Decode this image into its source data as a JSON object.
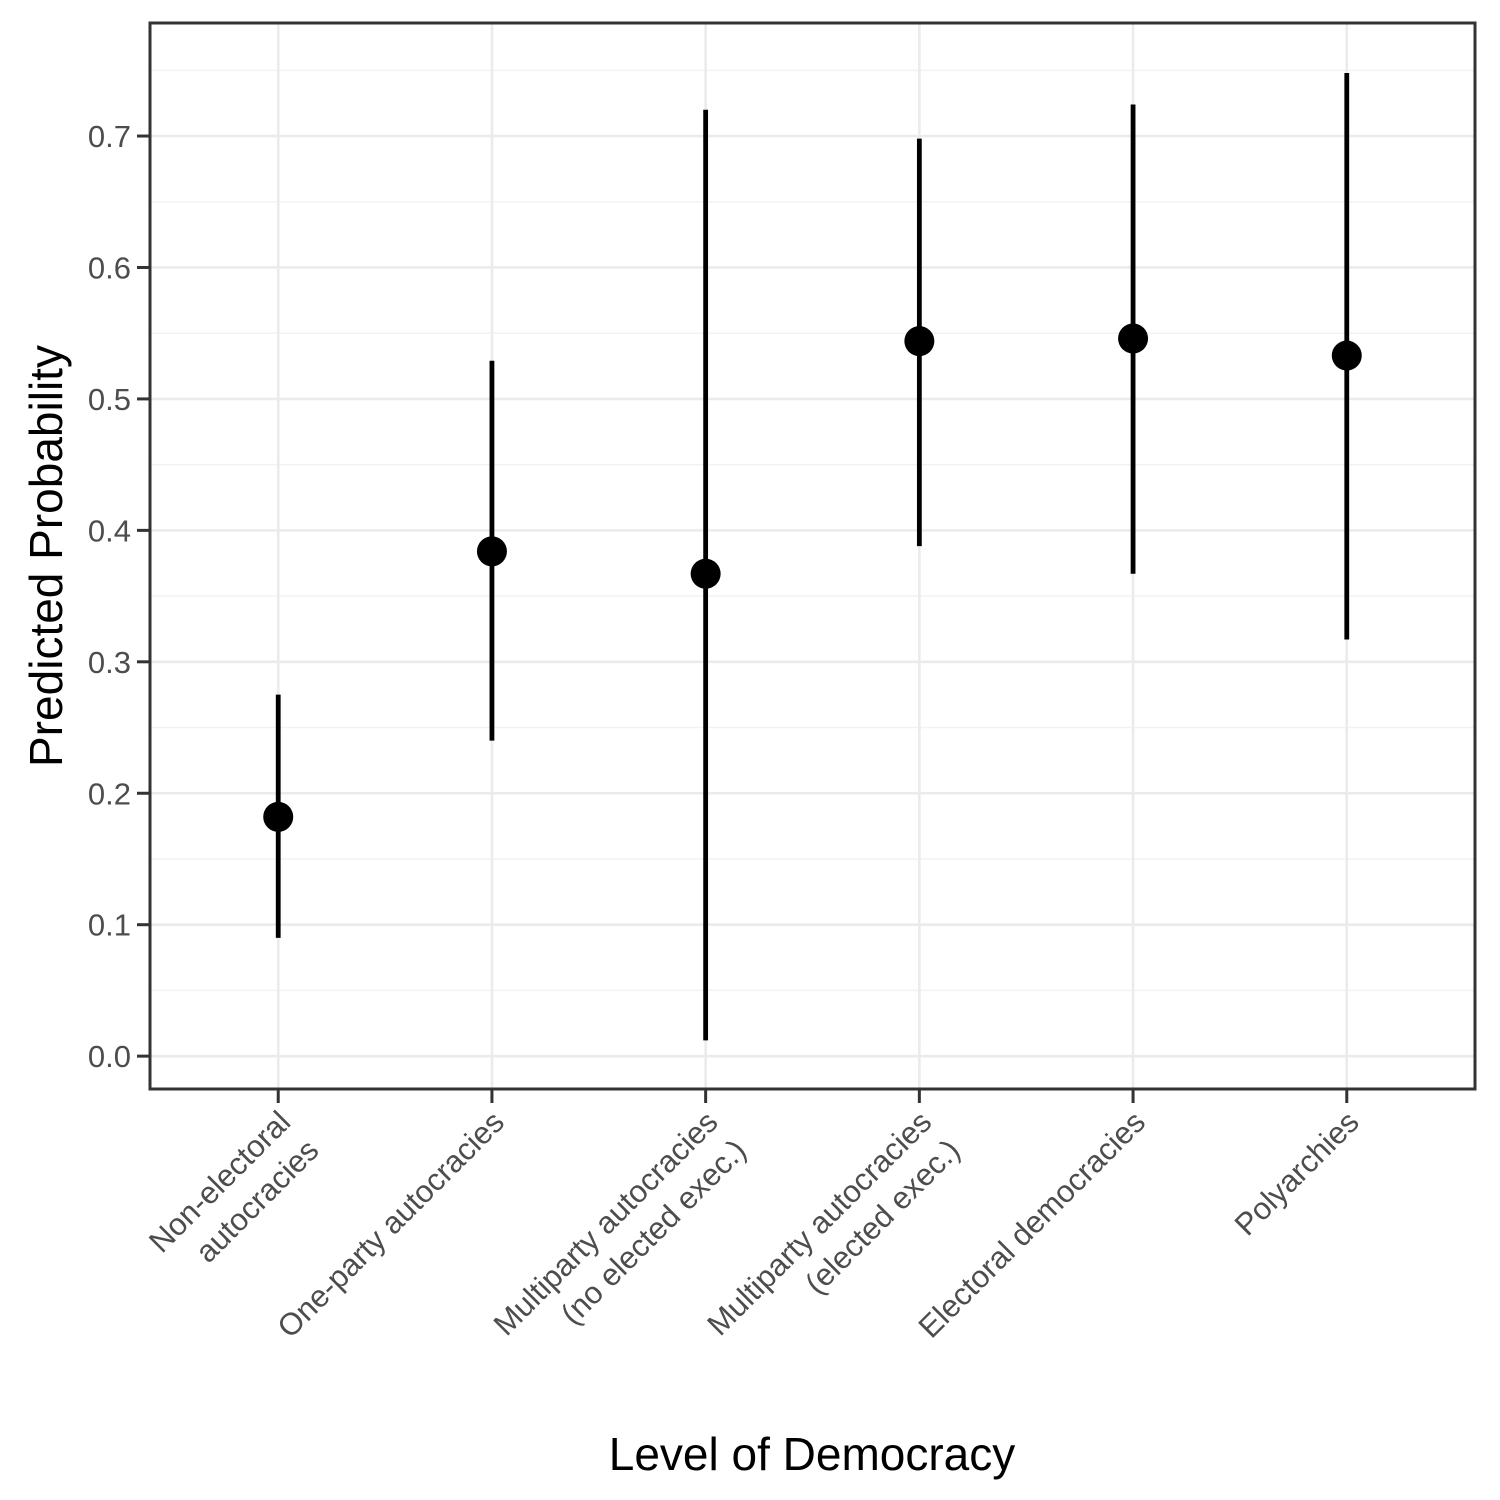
{
  "chart_data": {
    "type": "scatter",
    "subtype": "pointrange",
    "title": "",
    "xlabel": "Level of Democracy",
    "ylabel": "Predicted Probability",
    "legend": "none",
    "grid": "horizontal major+minor; vertical major at each category",
    "categories": [
      "Non-electoral autocracies",
      "One-party autocracies",
      "Multiparty autocracies (no elected exec.)",
      "Multiparty autocracies (elected exec.)",
      "Electoral democracies",
      "Polyarchies"
    ],
    "category_label_lines": [
      [
        "Non-electoral",
        "autocracies"
      ],
      [
        "One-party autocracies"
      ],
      [
        "Multiparty autocracies",
        "(no elected exec.)"
      ],
      [
        "Multiparty autocracies",
        "(elected exec.)"
      ],
      [
        "Electoral democracies"
      ],
      [
        "Polyarchies"
      ]
    ],
    "series": [
      {
        "name": "Predicted Probability",
        "estimates": [
          0.182,
          0.384,
          0.367,
          0.544,
          0.546,
          0.533
        ],
        "lower": [
          0.09,
          0.24,
          0.012,
          0.388,
          0.367,
          0.317
        ],
        "upper": [
          0.275,
          0.529,
          0.72,
          0.698,
          0.724,
          0.748
        ]
      }
    ],
    "ylim": [
      -0.025,
      0.786
    ],
    "yticks": [
      0.0,
      0.1,
      0.2,
      0.3,
      0.4,
      0.5,
      0.6,
      0.7
    ],
    "ytick_labels": [
      "0.0",
      "0.1",
      "0.2",
      "0.3",
      "0.4",
      "0.5",
      "0.6",
      "0.7"
    ],
    "yticks_minor": [
      0.05,
      0.15,
      0.25,
      0.35,
      0.45,
      0.55,
      0.65,
      0.75
    ]
  },
  "style": {
    "background": "#FFFFFF",
    "panel_background": "#FFFFFF",
    "panel_border_color": "#333333",
    "grid_major_color": "#EBEBEB",
    "grid_minor_color": "#F2F2F2",
    "tick_mark_color": "#333333",
    "tick_label_color": "#4D4D4D",
    "axis_title_color": "#000000",
    "point_color": "#000000",
    "range_line_color": "#000000"
  }
}
